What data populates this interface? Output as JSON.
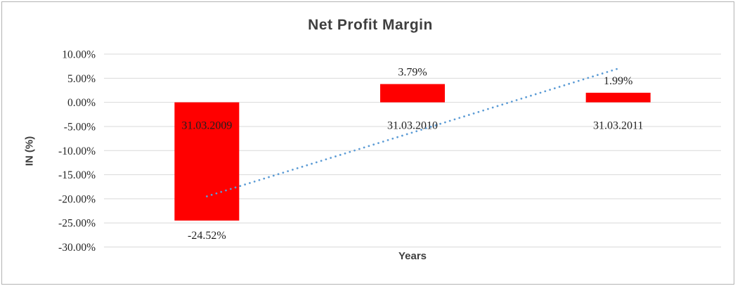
{
  "chart_data": {
    "type": "bar",
    "title": "Net Profit Margin",
    "xlabel": "Years",
    "ylabel": "IN (%)",
    "categories": [
      "31.03.2009",
      "31.03.2010",
      "31.03.2011"
    ],
    "values": [
      -24.52,
      3.79,
      1.99
    ],
    "data_labels": [
      "-24.52%",
      "3.79%",
      "1.99%"
    ],
    "unit": "percent",
    "ylim": [
      -30,
      10
    ],
    "yticks": [
      {
        "v": 10,
        "label": "10.00%"
      },
      {
        "v": 5,
        "label": "5.00%"
      },
      {
        "v": 0,
        "label": "0.00%"
      },
      {
        "v": -5,
        "label": "-5.00%"
      },
      {
        "v": -10,
        "label": "-10.00%"
      },
      {
        "v": -15,
        "label": "-15.00%"
      },
      {
        "v": -20,
        "label": "-20.00%"
      },
      {
        "v": -25,
        "label": "-25.00%"
      },
      {
        "v": -30,
        "label": "-30.00%"
      }
    ],
    "grid": true,
    "legend": "none",
    "bar_color": "#ff0000",
    "gridline_color": "#d9d9d9",
    "trendline": {
      "type": "linear",
      "style": "dotted",
      "color": "#5b9bd5",
      "start_value": -19.5,
      "end_value": 7.0
    }
  }
}
